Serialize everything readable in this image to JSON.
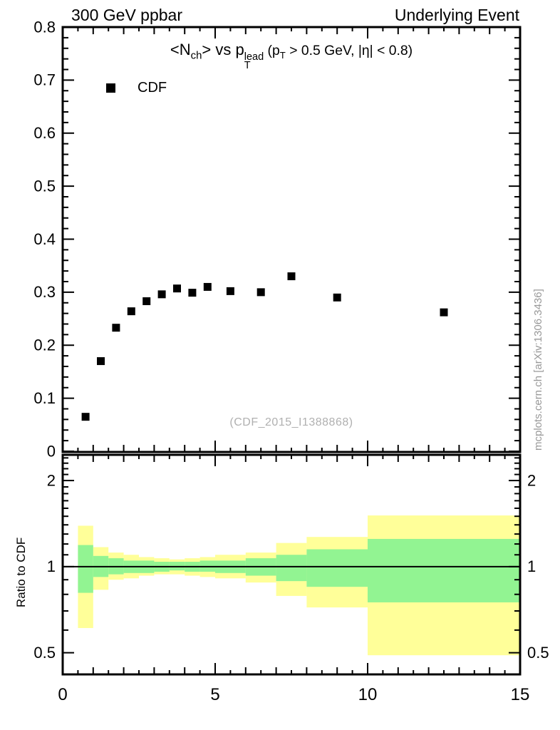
{
  "header": {
    "left": "300 GeV ppbar",
    "right": "Underlying Event"
  },
  "title": {
    "seg1": "<N",
    "sub1": "ch",
    "seg2": "> vs p",
    "sup2": "lead",
    "sub2": "T",
    "seg3": " (p",
    "sub3": "T",
    "seg4": " > 0.5 GeV, |η| < 0.8)"
  },
  "legend": {
    "entries": [
      {
        "label": "CDF",
        "marker": "filled-square",
        "color": "#000000"
      }
    ]
  },
  "watermark": "(CDF_2015_I1388868)",
  "side_note": "mcplots.cern.ch [arXiv:1306.3436]",
  "colors": {
    "marker": "#000000",
    "band_outer": "#ffff99",
    "band_inner": "#92f492",
    "frame": "#000000",
    "watermark": "#b0b0b0",
    "side_note": "#999999"
  },
  "chart_data": {
    "type": "scatter",
    "title": "<N_ch> vs p_T^lead (p_T > 0.5 GeV, |eta| < 0.8)",
    "header_left": "300 GeV ppbar",
    "header_right": "Underlying Event",
    "legend_position": "top-left-inside",
    "grid": false,
    "main_axis": {
      "xlim": [
        0,
        15
      ],
      "ylim": [
        0,
        0.8
      ],
      "xticks": [
        0,
        5,
        10,
        15
      ],
      "yticks": [
        0,
        0.1,
        0.2,
        0.3,
        0.4,
        0.5,
        0.6,
        0.7,
        0.8
      ],
      "x_minor_step": 0.5,
      "y_minor_step": 0.02
    },
    "series": [
      {
        "name": "CDF",
        "marker": "filled-square",
        "color": "#000000",
        "x": [
          0.75,
          1.25,
          1.75,
          2.25,
          2.75,
          3.25,
          3.75,
          4.25,
          4.75,
          5.5,
          6.5,
          7.5,
          9.0,
          12.5
        ],
        "y": [
          0.065,
          0.17,
          0.233,
          0.264,
          0.283,
          0.296,
          0.307,
          0.299,
          0.31,
          0.302,
          0.3,
          0.33,
          0.29,
          0.262
        ]
      }
    ],
    "ratio_panel": {
      "ylabel": "Ratio to CDF",
      "scale": "log",
      "ylim": [
        0.42,
        2.46
      ],
      "yticks": [
        0.5,
        1,
        2
      ],
      "unity_line": 1,
      "bands": [
        {
          "x0": 0.5,
          "x1": 1.0,
          "outer": [
            0.61,
            1.39
          ],
          "inner": [
            0.81,
            1.19
          ]
        },
        {
          "x0": 1.0,
          "x1": 1.5,
          "outer": [
            0.83,
            1.17
          ],
          "inner": [
            0.92,
            1.09
          ]
        },
        {
          "x0": 1.5,
          "x1": 2.0,
          "outer": [
            0.9,
            1.12
          ],
          "inner": [
            0.94,
            1.07
          ]
        },
        {
          "x0": 2.0,
          "x1": 2.5,
          "outer": [
            0.91,
            1.1
          ],
          "inner": [
            0.95,
            1.05
          ]
        },
        {
          "x0": 2.5,
          "x1": 3.0,
          "outer": [
            0.93,
            1.08
          ],
          "inner": [
            0.95,
            1.05
          ]
        },
        {
          "x0": 3.0,
          "x1": 3.5,
          "outer": [
            0.94,
            1.07
          ],
          "inner": [
            0.96,
            1.04
          ]
        },
        {
          "x0": 3.5,
          "x1": 4.0,
          "outer": [
            0.94,
            1.06
          ],
          "inner": [
            0.97,
            1.04
          ]
        },
        {
          "x0": 4.0,
          "x1": 4.5,
          "outer": [
            0.93,
            1.07
          ],
          "inner": [
            0.96,
            1.04
          ]
        },
        {
          "x0": 4.5,
          "x1": 5.0,
          "outer": [
            0.92,
            1.08
          ],
          "inner": [
            0.96,
            1.05
          ]
        },
        {
          "x0": 5.0,
          "x1": 6.0,
          "outer": [
            0.91,
            1.1
          ],
          "inner": [
            0.95,
            1.05
          ]
        },
        {
          "x0": 6.0,
          "x1": 7.0,
          "outer": [
            0.88,
            1.12
          ],
          "inner": [
            0.93,
            1.07
          ]
        },
        {
          "x0": 7.0,
          "x1": 8.0,
          "outer": [
            0.79,
            1.21
          ],
          "inner": [
            0.89,
            1.1
          ]
        },
        {
          "x0": 8.0,
          "x1": 10.0,
          "outer": [
            0.72,
            1.27
          ],
          "inner": [
            0.85,
            1.15
          ]
        },
        {
          "x0": 10.0,
          "x1": 15.0,
          "outer": [
            0.49,
            1.51
          ],
          "inner": [
            0.75,
            1.25
          ]
        }
      ]
    }
  }
}
